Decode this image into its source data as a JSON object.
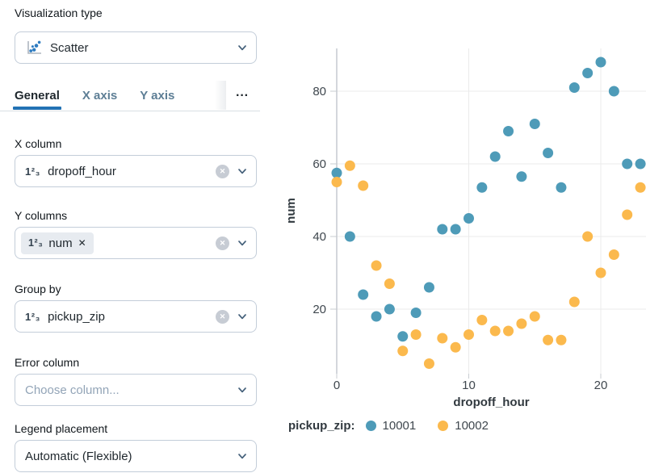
{
  "icons": {
    "clear": "✕",
    "chip_remove": "✕",
    "number_glyph": "1²₃",
    "overflow": "···"
  },
  "panel": {
    "viz_type": {
      "label": "Visualization type",
      "value": "Scatter"
    },
    "tabs": {
      "items": [
        {
          "label": "General"
        },
        {
          "label": "X axis"
        },
        {
          "label": "Y axis"
        }
      ]
    },
    "x_column": {
      "label": "X column",
      "value": "dropoff_hour"
    },
    "y_columns": {
      "label": "Y columns",
      "chip_text": "num"
    },
    "group_by": {
      "label": "Group by",
      "value": "pickup_zip"
    },
    "error_column": {
      "label": "Error column",
      "placeholder": "Choose column..."
    },
    "legend_placement": {
      "label": "Legend placement",
      "value": "Automatic (Flexible)"
    }
  },
  "chart_data": {
    "type": "scatter",
    "xlabel": "dropoff_hour",
    "ylabel": "num",
    "legend_title": "pickup_zip:",
    "legend_position": "bottom",
    "grid": true,
    "xticks": [
      0,
      10,
      20
    ],
    "yticks": [
      20,
      40,
      60,
      80
    ],
    "xlim": [
      -1,
      23.6
    ],
    "ylim": [
      2,
      91
    ],
    "x": [
      0,
      1,
      2,
      3,
      4,
      5,
      6,
      7,
      8,
      9,
      10,
      11,
      12,
      13,
      14,
      15,
      16,
      17,
      18,
      19,
      20,
      21,
      22,
      23
    ],
    "series": [
      {
        "name": "10001",
        "color": "#4E9BB8",
        "values": [
          57.5,
          40,
          24,
          18,
          20,
          12.5,
          19,
          26,
          42,
          42,
          45,
          53.5,
          62,
          69,
          56.5,
          71,
          63,
          53.5,
          81,
          85,
          88,
          80,
          60,
          60
        ]
      },
      {
        "name": "10002",
        "color": "#FBB94D",
        "values": [
          55,
          59.5,
          54,
          32,
          27,
          8.5,
          13,
          5,
          12,
          9.5,
          13,
          17,
          14,
          14,
          16,
          18,
          11.5,
          11.5,
          22,
          40,
          30,
          35,
          46,
          53.5
        ]
      }
    ]
  }
}
